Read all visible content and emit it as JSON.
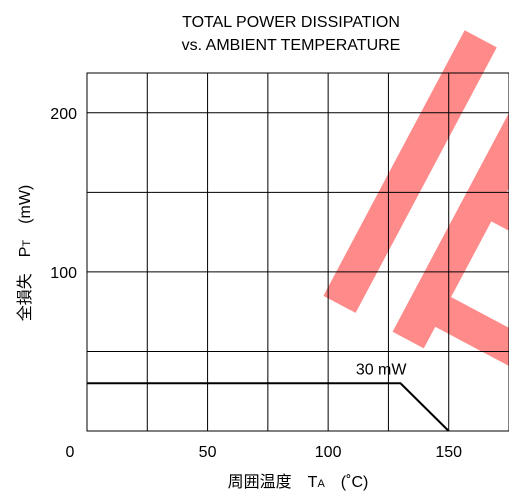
{
  "chart_data": {
    "type": "line",
    "title": [
      "TOTAL POWER DISSIPATION",
      "vs. AMBIENT TEMPERATURE"
    ],
    "xlabel": {
      "prefix": "周囲温度　T",
      "subscript": "A",
      "suffix": "　(˚C)"
    },
    "ylabel": {
      "prefix": "全損失　P",
      "subscript": "T",
      "suffix": "　(mW)"
    },
    "xlim": [
      0,
      175
    ],
    "ylim": [
      0,
      225
    ],
    "x_ticks": [
      0,
      50,
      100,
      150
    ],
    "y_ticks": [
      100,
      200
    ],
    "x_gridlines": [
      25,
      50,
      75,
      100,
      125,
      150
    ],
    "y_gridlines": [
      50,
      100,
      150,
      200
    ],
    "grid": true,
    "series": [
      {
        "x": [
          0,
          130,
          150
        ],
        "y": [
          30,
          30,
          0
        ]
      }
    ],
    "annotations": [
      {
        "text": "30 mW",
        "x": 130,
        "y": 30
      }
    ],
    "colors": {
      "line": "#000000",
      "grid": "#000000",
      "watermark": "#ff8a8a"
    },
    "watermark": "旧"
  }
}
